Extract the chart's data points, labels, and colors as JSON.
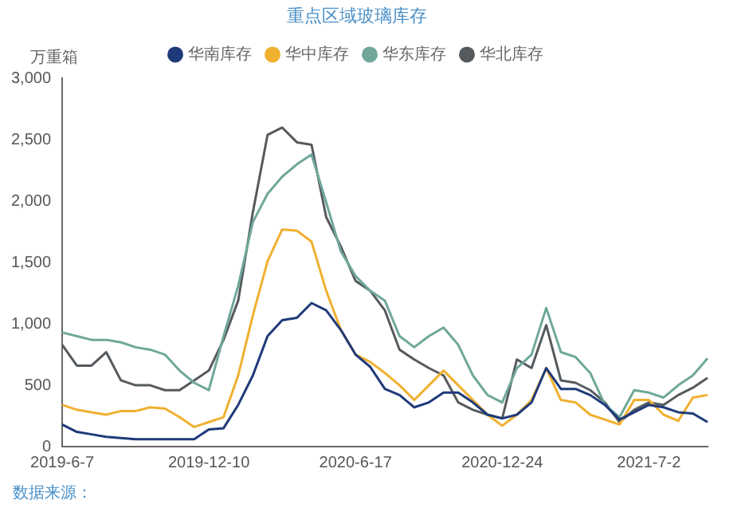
{
  "chart_data": {
    "type": "line",
    "title": "重点区域玻璃库存",
    "ylabel": "万重箱",
    "annotations": [
      "数据来源："
    ],
    "categories": [
      "2019-6-7",
      null,
      null,
      null,
      null,
      null,
      null,
      null,
      null,
      null,
      "2019-12-10",
      null,
      null,
      null,
      null,
      null,
      null,
      null,
      null,
      null,
      "2020-6-17",
      null,
      null,
      null,
      null,
      null,
      null,
      null,
      null,
      null,
      "2020-12-24",
      null,
      null,
      null,
      null,
      null,
      null,
      null,
      null,
      null,
      "2021-7-2",
      null,
      null,
      null,
      null
    ],
    "series": [
      {
        "name": "华南库存",
        "color": "#1f3a7a",
        "values": [
          180,
          120,
          100,
          80,
          70,
          60,
          60,
          60,
          60,
          60,
          140,
          150,
          340,
          580,
          900,
          1030,
          1050,
          1170,
          1110,
          950,
          750,
          650,
          470,
          420,
          320,
          360,
          440,
          440,
          360,
          260,
          230,
          260,
          360,
          640,
          470,
          470,
          420,
          340,
          220,
          280,
          340,
          320,
          280,
          270,
          200
        ]
      },
      {
        "name": "华中库存",
        "color": "#f0b030",
        "values": [
          340,
          300,
          280,
          260,
          290,
          290,
          320,
          310,
          240,
          160,
          200,
          240,
          580,
          1070,
          1510,
          1770,
          1760,
          1670,
          1270,
          950,
          750,
          690,
          600,
          500,
          380,
          500,
          620,
          500,
          380,
          260,
          170,
          260,
          380,
          640,
          380,
          360,
          260,
          220,
          180,
          380,
          380,
          260,
          210,
          400,
          420
        ]
      },
      {
        "name": "华东库存",
        "color": "#6fa89a",
        "values": [
          930,
          900,
          870,
          870,
          850,
          810,
          790,
          750,
          620,
          520,
          460,
          900,
          1310,
          1830,
          2060,
          2200,
          2300,
          2380,
          1990,
          1590,
          1390,
          1270,
          1190,
          900,
          810,
          900,
          970,
          830,
          580,
          420,
          360,
          640,
          750,
          1130,
          770,
          730,
          600,
          340,
          240,
          460,
          440,
          400,
          500,
          580,
          720
        ]
      },
      {
        "name": "华北库存",
        "color": "#555a5e",
        "values": [
          830,
          660,
          660,
          770,
          540,
          500,
          500,
          460,
          460,
          540,
          620,
          870,
          1190,
          1910,
          2540,
          2600,
          2480,
          2460,
          1870,
          1630,
          1350,
          1270,
          1110,
          790,
          710,
          640,
          580,
          360,
          300,
          260,
          230,
          710,
          640,
          990,
          540,
          520,
          460,
          360,
          200,
          300,
          360,
          340,
          420,
          480,
          560
        ]
      }
    ],
    "ylim": [
      0,
      3000
    ],
    "yticks": [
      0,
      {
        "value": 500,
        "label": "500"
      },
      {
        "value": 1000,
        "label": "1,000"
      },
      {
        "value": 1500,
        "label": "1,500"
      },
      {
        "value": 2000,
        "label": "2,000"
      },
      {
        "value": 2500,
        "label": "2,500"
      },
      {
        "value": 3000,
        "label": "3,000"
      }
    ],
    "grid": false,
    "legend": "top",
    "marker": "none",
    "line_style": "solid"
  }
}
